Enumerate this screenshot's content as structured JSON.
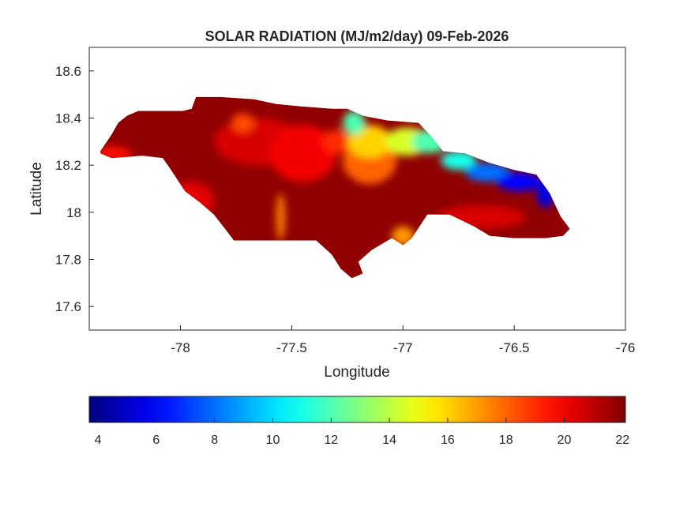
{
  "chart_data": {
    "type": "heatmap",
    "title": "SOLAR RADIATION (MJ/m2/day) 09-Feb-2026",
    "xlabel": "Longitude",
    "ylabel": "Latitude",
    "xlim": [
      -78.41,
      -76
    ],
    "ylim": [
      17.5,
      18.7
    ],
    "xticks": [
      -78,
      -77.5,
      -77,
      -76.5,
      -76
    ],
    "xtick_labels": [
      "-78",
      "-77.5",
      "-77",
      "-76.5",
      "-76"
    ],
    "yticks": [
      17.6,
      17.8,
      18,
      18.2,
      18.4,
      18.6
    ],
    "ytick_labels": [
      "17.6",
      "17.8",
      "18",
      "18.2",
      "18.4",
      "18.6"
    ],
    "colormap": "jet",
    "colorbar": {
      "placement": "bottom",
      "clim": [
        3.7,
        22.1
      ],
      "ticks": [
        4,
        6,
        8,
        10,
        12,
        14,
        16,
        18,
        20,
        22
      ],
      "tick_labels": [
        "4",
        "6",
        "8",
        "10",
        "12",
        "14",
        "16",
        "18",
        "20",
        "22"
      ]
    },
    "background_value": 21.8,
    "outline_lonlat": [
      [
        -78.36,
        18.26
      ],
      [
        -78.31,
        18.33
      ],
      [
        -78.28,
        18.38
      ],
      [
        -78.24,
        18.41
      ],
      [
        -78.19,
        18.43
      ],
      [
        -77.99,
        18.43
      ],
      [
        -77.95,
        18.44
      ],
      [
        -77.93,
        18.49
      ],
      [
        -77.82,
        18.49
      ],
      [
        -77.67,
        18.48
      ],
      [
        -77.57,
        18.46
      ],
      [
        -77.46,
        18.45
      ],
      [
        -77.32,
        18.44
      ],
      [
        -77.25,
        18.44
      ],
      [
        -77.18,
        18.41
      ],
      [
        -77.07,
        18.39
      ],
      [
        -76.93,
        18.38
      ],
      [
        -76.88,
        18.33
      ],
      [
        -76.82,
        18.26
      ],
      [
        -76.72,
        18.25
      ],
      [
        -76.61,
        18.21
      ],
      [
        -76.5,
        18.18
      ],
      [
        -76.4,
        18.16
      ],
      [
        -76.34,
        18.08
      ],
      [
        -76.29,
        17.98
      ],
      [
        -76.25,
        17.93
      ],
      [
        -76.28,
        17.9
      ],
      [
        -76.36,
        17.89
      ],
      [
        -76.5,
        17.89
      ],
      [
        -76.61,
        17.9
      ],
      [
        -76.68,
        17.94
      ],
      [
        -76.79,
        17.99
      ],
      [
        -76.89,
        17.99
      ],
      [
        -76.96,
        17.89
      ],
      [
        -77.0,
        17.86
      ],
      [
        -77.05,
        17.89
      ],
      [
        -77.14,
        17.84
      ],
      [
        -77.2,
        17.79
      ],
      [
        -77.18,
        17.74
      ],
      [
        -77.23,
        17.72
      ],
      [
        -77.28,
        17.76
      ],
      [
        -77.32,
        17.82
      ],
      [
        -77.39,
        17.88
      ],
      [
        -77.76,
        17.88
      ],
      [
        -77.8,
        17.93
      ],
      [
        -77.85,
        17.99
      ],
      [
        -77.91,
        18.04
      ],
      [
        -77.98,
        18.09
      ],
      [
        -78.05,
        18.19
      ],
      [
        -78.08,
        18.23
      ],
      [
        -78.17,
        18.24
      ],
      [
        -78.31,
        18.23
      ],
      [
        -78.36,
        18.25
      ]
    ],
    "field_blobs": [
      {
        "lon": -77.65,
        "lat": 18.3,
        "rlon": 0.2,
        "rlat": 0.1,
        "value": 20.5
      },
      {
        "lon": -77.45,
        "lat": 18.25,
        "rlon": 0.15,
        "rlat": 0.12,
        "value": 20
      },
      {
        "lon": -77.95,
        "lat": 18.05,
        "rlon": 0.1,
        "rlat": 0.08,
        "value": 20.3
      },
      {
        "lon": -78.3,
        "lat": 18.25,
        "rlon": 0.08,
        "rlat": 0.03,
        "value": 19.5
      },
      {
        "lon": -77.72,
        "lat": 18.38,
        "rlon": 0.05,
        "rlat": 0.04,
        "value": 18.5
      },
      {
        "lon": -77.3,
        "lat": 18.3,
        "rlon": 0.06,
        "rlat": 0.05,
        "value": 19
      },
      {
        "lon": -76.65,
        "lat": 17.98,
        "rlon": 0.2,
        "rlat": 0.05,
        "value": 20.5
      },
      {
        "lon": -77.55,
        "lat": 17.98,
        "rlon": 0.02,
        "rlat": 0.1,
        "value": 17.5
      },
      {
        "lon": -77.0,
        "lat": 17.9,
        "rlon": 0.05,
        "rlat": 0.04,
        "value": 17
      },
      {
        "lon": -77.15,
        "lat": 18.22,
        "rlon": 0.12,
        "rlat": 0.1,
        "value": 18
      },
      {
        "lon": -77.15,
        "lat": 18.3,
        "rlon": 0.1,
        "rlat": 0.07,
        "value": 16
      },
      {
        "lon": -76.98,
        "lat": 18.3,
        "rlon": 0.1,
        "rlat": 0.06,
        "value": 14.5
      },
      {
        "lon": -77.22,
        "lat": 18.38,
        "rlon": 0.05,
        "rlat": 0.05,
        "value": 12
      },
      {
        "lon": -76.88,
        "lat": 18.3,
        "rlon": 0.08,
        "rlat": 0.05,
        "value": 12
      },
      {
        "lon": -76.75,
        "lat": 18.22,
        "rlon": 0.08,
        "rlat": 0.04,
        "value": 11
      },
      {
        "lon": -76.62,
        "lat": 18.17,
        "rlon": 0.1,
        "rlat": 0.04,
        "value": 8
      },
      {
        "lon": -76.48,
        "lat": 18.13,
        "rlon": 0.1,
        "rlat": 0.04,
        "value": 6
      },
      {
        "lon": -76.36,
        "lat": 18.08,
        "rlon": 0.04,
        "rlat": 0.06,
        "value": 5.5
      }
    ]
  }
}
